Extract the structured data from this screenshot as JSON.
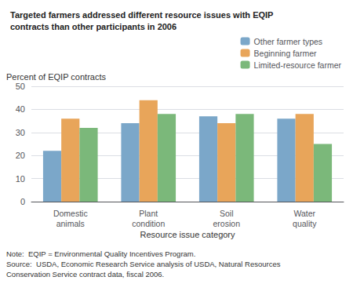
{
  "chart_data": {
    "type": "bar",
    "title": "Targeted farmers addressed different resource issues with EQIP\ncontracts than other participants in 2006",
    "xlabel": "Resource issue category",
    "ylabel": "Percent of EQIP contracts",
    "categories": [
      "Domestic\nanimals",
      "Plant\ncondition",
      "Soil\nerosion",
      "Water\nquality"
    ],
    "series": [
      {
        "name": "Other farmer types",
        "color": "#7ba7c9",
        "values": [
          22,
          34,
          37,
          36
        ]
      },
      {
        "name": "Beginning farmer",
        "color": "#e8a55a",
        "values": [
          36,
          44,
          34,
          38
        ]
      },
      {
        "name": "Limited-resource farmer",
        "color": "#7bb87a",
        "values": [
          32,
          38,
          38,
          25
        ]
      }
    ],
    "ylim": [
      0,
      50
    ],
    "yticks": [
      0,
      10,
      20,
      30,
      40,
      50
    ],
    "grid": true,
    "legend": "upper right",
    "annotations": [
      "Note:  EQIP = Environmental Quality Incentives Program.\nSource:  USDA, Economic Research Service analysis of USDA, Natural Resources\nConservation Service contract data, fiscal 2006."
    ]
  }
}
